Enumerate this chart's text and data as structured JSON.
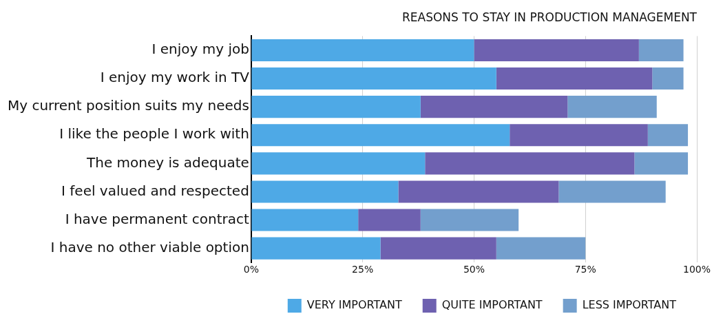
{
  "chart_data": {
    "type": "bar",
    "orientation": "horizontal",
    "stacked": true,
    "title": "REASONS TO STAY IN PRODUCTION MANAGEMENT",
    "categories": [
      "I enjoy my job",
      "I enjoy my work in TV",
      "My current position suits my needs",
      "I like the people I work with",
      "The money is adequate",
      "I feel valued and respected",
      "I have permanent contract",
      "I have no other viable option"
    ],
    "series": [
      {
        "name": "VERY IMPORTANT",
        "color": "#4ea9e6",
        "values": [
          50,
          55,
          38,
          58,
          39,
          33,
          24,
          29
        ]
      },
      {
        "name": "QUITE IMPORTANT",
        "color": "#6e61b0",
        "values": [
          37,
          35,
          33,
          31,
          47,
          36,
          14,
          26
        ]
      },
      {
        "name": "LESS IMPORTANT",
        "color": "#739fcd",
        "values": [
          10,
          7,
          20,
          9,
          12,
          24,
          22,
          20
        ]
      }
    ],
    "xlim": [
      0,
      100
    ],
    "xticks": [
      {
        "value": 0,
        "label": "0%"
      },
      {
        "value": 25,
        "label": "25%"
      },
      {
        "value": 50,
        "label": "50%"
      },
      {
        "value": 75,
        "label": "75%"
      },
      {
        "value": 100,
        "label": "100%"
      }
    ],
    "grid": "x",
    "legend": "bottom"
  }
}
